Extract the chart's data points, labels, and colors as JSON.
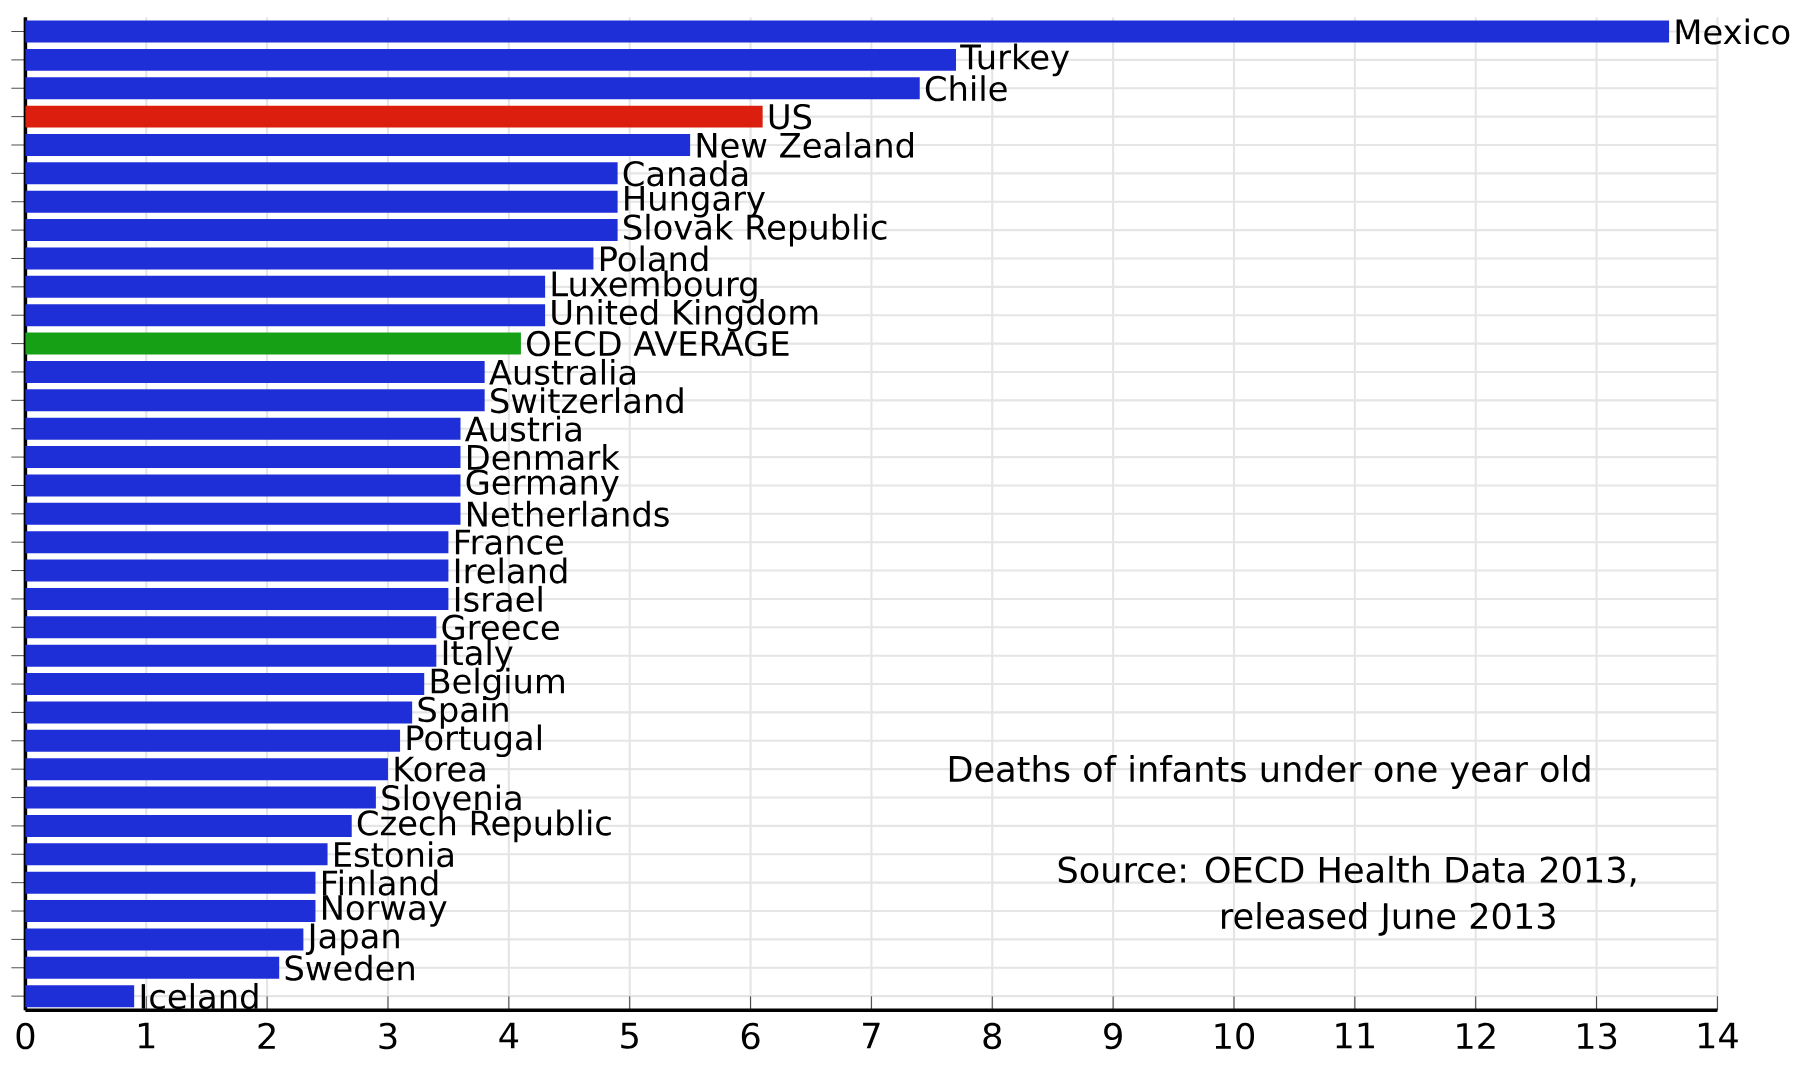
{
  "chart_data": {
    "type": "bar",
    "orientation": "horizontal",
    "categories": [
      "Mexico",
      "Turkey",
      "Chile",
      "US",
      "New Zealand",
      "Canada",
      "Hungary",
      "Slovak Republic",
      "Poland",
      "Luxembourg",
      "United Kingdom",
      "OECD AVERAGE",
      "Australia",
      "Switzerland",
      "Austria",
      "Denmark",
      "Germany",
      "Netherlands",
      "France",
      "Ireland",
      "Israel",
      "Greece",
      "Italy",
      "Belgium",
      "Spain",
      "Portugal",
      "Korea",
      "Slovenia",
      "Czech Republic",
      "Estonia",
      "Finland",
      "Norway",
      "Japan",
      "Sweden",
      "Iceland"
    ],
    "values": [
      13.6,
      7.7,
      7.4,
      6.1,
      5.5,
      4.9,
      4.9,
      4.9,
      4.7,
      4.3,
      4.3,
      4.1,
      3.8,
      3.8,
      3.6,
      3.6,
      3.6,
      3.6,
      3.5,
      3.5,
      3.5,
      3.4,
      3.4,
      3.3,
      3.2,
      3.1,
      3.0,
      2.9,
      2.7,
      2.5,
      2.4,
      2.4,
      2.3,
      2.1,
      0.9
    ],
    "colors": [
      "#1f2fd8",
      "#1f2fd8",
      "#1f2fd8",
      "#dc1e0e",
      "#1f2fd8",
      "#1f2fd8",
      "#1f2fd8",
      "#1f2fd8",
      "#1f2fd8",
      "#1f2fd8",
      "#1f2fd8",
      "#16a016",
      "#1f2fd8",
      "#1f2fd8",
      "#1f2fd8",
      "#1f2fd8",
      "#1f2fd8",
      "#1f2fd8",
      "#1f2fd8",
      "#1f2fd8",
      "#1f2fd8",
      "#1f2fd8",
      "#1f2fd8",
      "#1f2fd8",
      "#1f2fd8",
      "#1f2fd8",
      "#1f2fd8",
      "#1f2fd8",
      "#1f2fd8",
      "#1f2fd8",
      "#1f2fd8",
      "#1f2fd8",
      "#1f2fd8",
      "#1f2fd8",
      "#1f2fd8"
    ],
    "xlim": [
      0,
      14
    ],
    "xticks": [
      0,
      1,
      2,
      3,
      4,
      5,
      6,
      7,
      8,
      9,
      10,
      11,
      12,
      13,
      14
    ],
    "grid": true,
    "tick_labels": "x",
    "annotations": [
      "Deaths of infants under one year old",
      "Source:  OECD Health Data 2013,",
      "released June 2013"
    ]
  }
}
